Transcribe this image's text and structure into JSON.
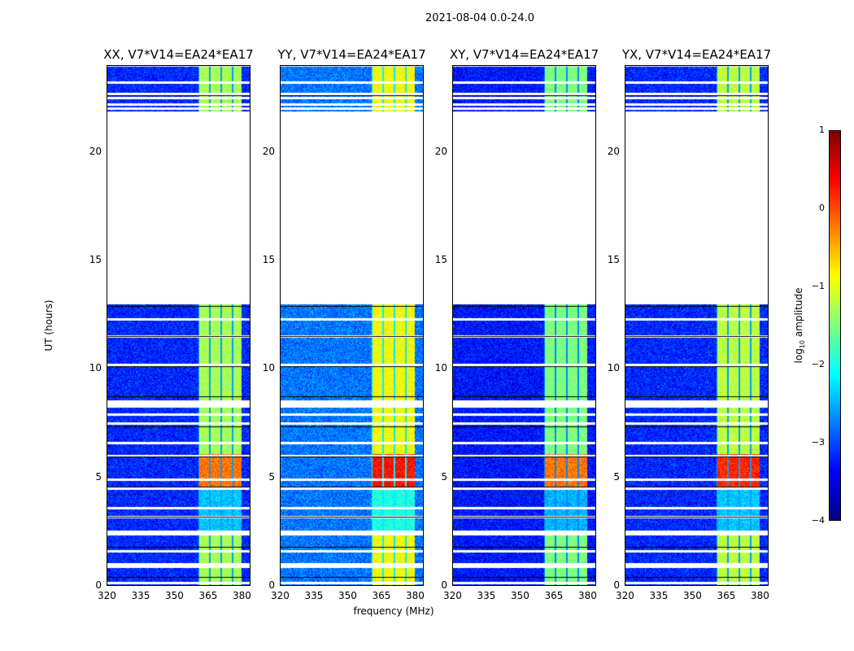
{
  "suptitle": "2021-08-04 0.0-24.0",
  "chart_data": {
    "type": "heatmap",
    "xlabel": "frequency (MHz)",
    "ylabel": "UT (hours)",
    "xlim": [
      320,
      384
    ],
    "ylim": [
      0,
      24
    ],
    "xticks": [
      "320",
      "335",
      "350",
      "365",
      "380"
    ],
    "xtick_values": [
      320,
      335,
      350,
      365,
      380
    ],
    "yticks": [
      "0",
      "5",
      "10",
      "15",
      "20"
    ],
    "ytick_values": [
      0,
      5,
      10,
      15,
      20
    ],
    "data_gap_hours": [
      13.0,
      21.9
    ],
    "rfi_band_mhz": [
      360.5,
      380
    ],
    "hot_interval_hours": [
      4.6,
      6.1
    ],
    "blank_rows_hours": [
      0.15,
      0.9,
      1.0,
      1.6,
      2.4,
      2.5,
      3.2,
      3.6,
      4.5,
      4.9,
      6.0,
      6.6,
      7.5,
      7.9,
      8.3,
      8.4,
      8.5,
      10.2,
      11.5,
      12.3,
      22.0,
      22.2,
      22.5,
      22.7,
      23.2
    ],
    "panels": [
      {
        "title": "XX, V7*V14=EA24*EA17",
        "background": -3.2,
        "band": -1.3,
        "hot": -0.2
      },
      {
        "title": "YY, V7*V14=EA24*EA17",
        "background": -2.8,
        "band": -0.9,
        "hot": 0.3
      },
      {
        "title": "XY, V7*V14=EA24*EA17",
        "background": -3.3,
        "band": -1.5,
        "hot": -0.2
      },
      {
        "title": "YX, V7*V14=EA24*EA17",
        "background": -3.2,
        "band": -1.2,
        "hot": 0.2
      }
    ],
    "colorbar": {
      "label": "log10 amplitude",
      "label_main": "log",
      "label_sub": "10",
      "label_rest": " amplitude",
      "range": [
        -4,
        1
      ],
      "ticks": [
        "1",
        "0",
        "−1",
        "−2",
        "−3",
        "−4"
      ],
      "tick_values": [
        1,
        0,
        -1,
        -2,
        -3,
        -4
      ],
      "colormap": "jet"
    }
  }
}
